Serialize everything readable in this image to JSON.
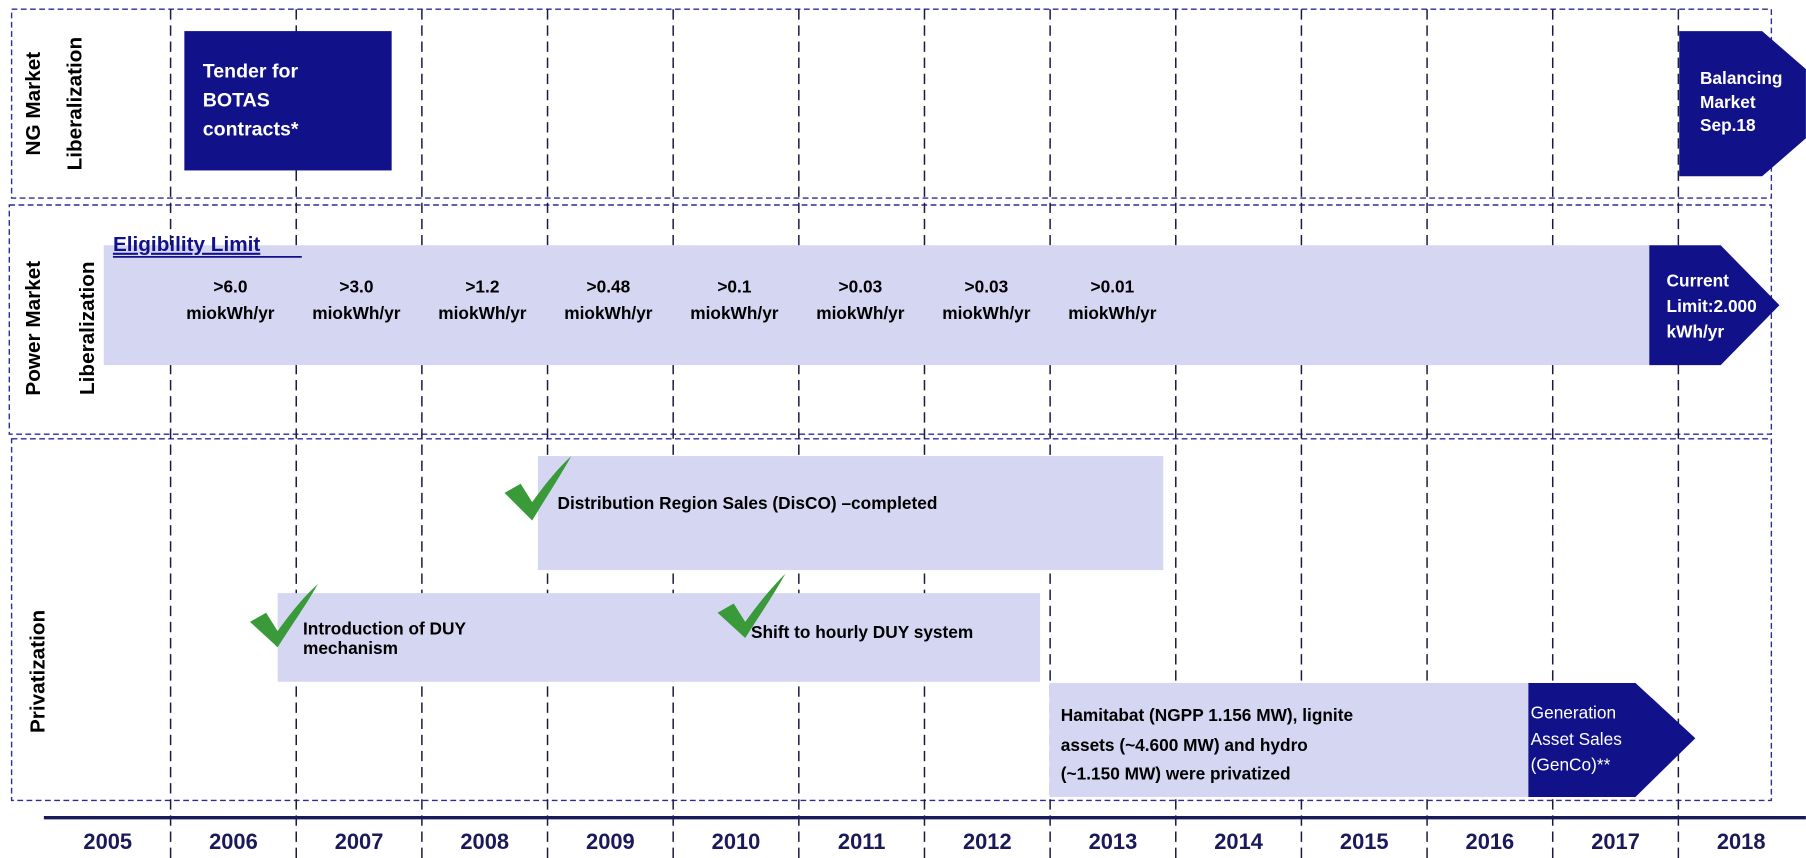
{
  "years": [
    "2005",
    "2006",
    "2007",
    "2008",
    "2009",
    "2010",
    "2011",
    "2012",
    "2013",
    "2014",
    "2015",
    "2016",
    "2017",
    "2018"
  ],
  "rows": {
    "ng": {
      "label": [
        "NG Market",
        "Liberalization"
      ],
      "tender": [
        "Tender for",
        "BOTAS",
        "contracts*"
      ],
      "balancing": [
        "Balancing",
        "Market",
        "Sep.18"
      ]
    },
    "power": {
      "label": [
        "Power Market",
        "Liberalization"
      ],
      "title": "Eligibility Limit",
      "limits": [
        {
          "value": ">6.0",
          "unit": "miokWh/yr"
        },
        {
          "value": ">3.0",
          "unit": "miokWh/yr"
        },
        {
          "value": ">1.2",
          "unit": "miokWh/yr"
        },
        {
          "value": ">0.48",
          "unit": "miokWh/yr"
        },
        {
          "value": ">0.1",
          "unit": "miokWh/yr"
        },
        {
          "value": ">0.03",
          "unit": "miokWh/yr"
        },
        {
          "value": ">0.03",
          "unit": "miokWh/yr"
        },
        {
          "value": ">0.01",
          "unit": "miokWh/yr"
        }
      ],
      "current": [
        "Current",
        "Limit:2.000",
        "kWh/yr"
      ]
    },
    "privatization": {
      "label": "Privatization",
      "distribution": "Distribution  Region Sales  (DisCO) –completed",
      "duy": [
        "Introduction of DUY",
        "mechanism"
      ],
      "hourly": "Shift to hourly DUY system",
      "hamitabat": [
        "Hamitabat (NGPP 1.156 MW), lignite",
        "assets (~4.600 MW) and hydro",
        "(~1.150 MW) were privatized"
      ],
      "genco": [
        "Generation",
        "Asset Sales",
        "(GenCo)**"
      ]
    }
  }
}
